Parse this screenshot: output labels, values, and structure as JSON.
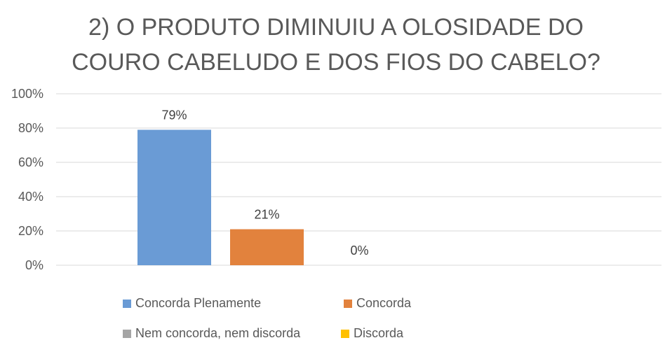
{
  "chart_data": {
    "type": "bar",
    "title_lines": [
      "2) O PRODUTO DIMINUIU A OLOSIDADE DO",
      "COURO CABELUDO E DOS FIOS DO CABELO?"
    ],
    "xlabel": "",
    "ylabel": "",
    "ylim": [
      0,
      100
    ],
    "yticks": [
      "0%",
      "20%",
      "40%",
      "60%",
      "80%",
      "100%"
    ],
    "grid": true,
    "legend_position": "bottom",
    "series": [
      {
        "name": "Concorda Plenamente",
        "value": 79,
        "label": "79%",
        "color": "#6a9bd5"
      },
      {
        "name": "Concorda",
        "value": 21,
        "label": "21%",
        "color": "#e2823d"
      },
      {
        "name": "Nem concorda, nem discorda",
        "value": 0,
        "label": "0%",
        "color": "#a5a5a5"
      },
      {
        "name": "Discorda",
        "value": null,
        "label": "",
        "color": "#ffc000"
      }
    ]
  }
}
